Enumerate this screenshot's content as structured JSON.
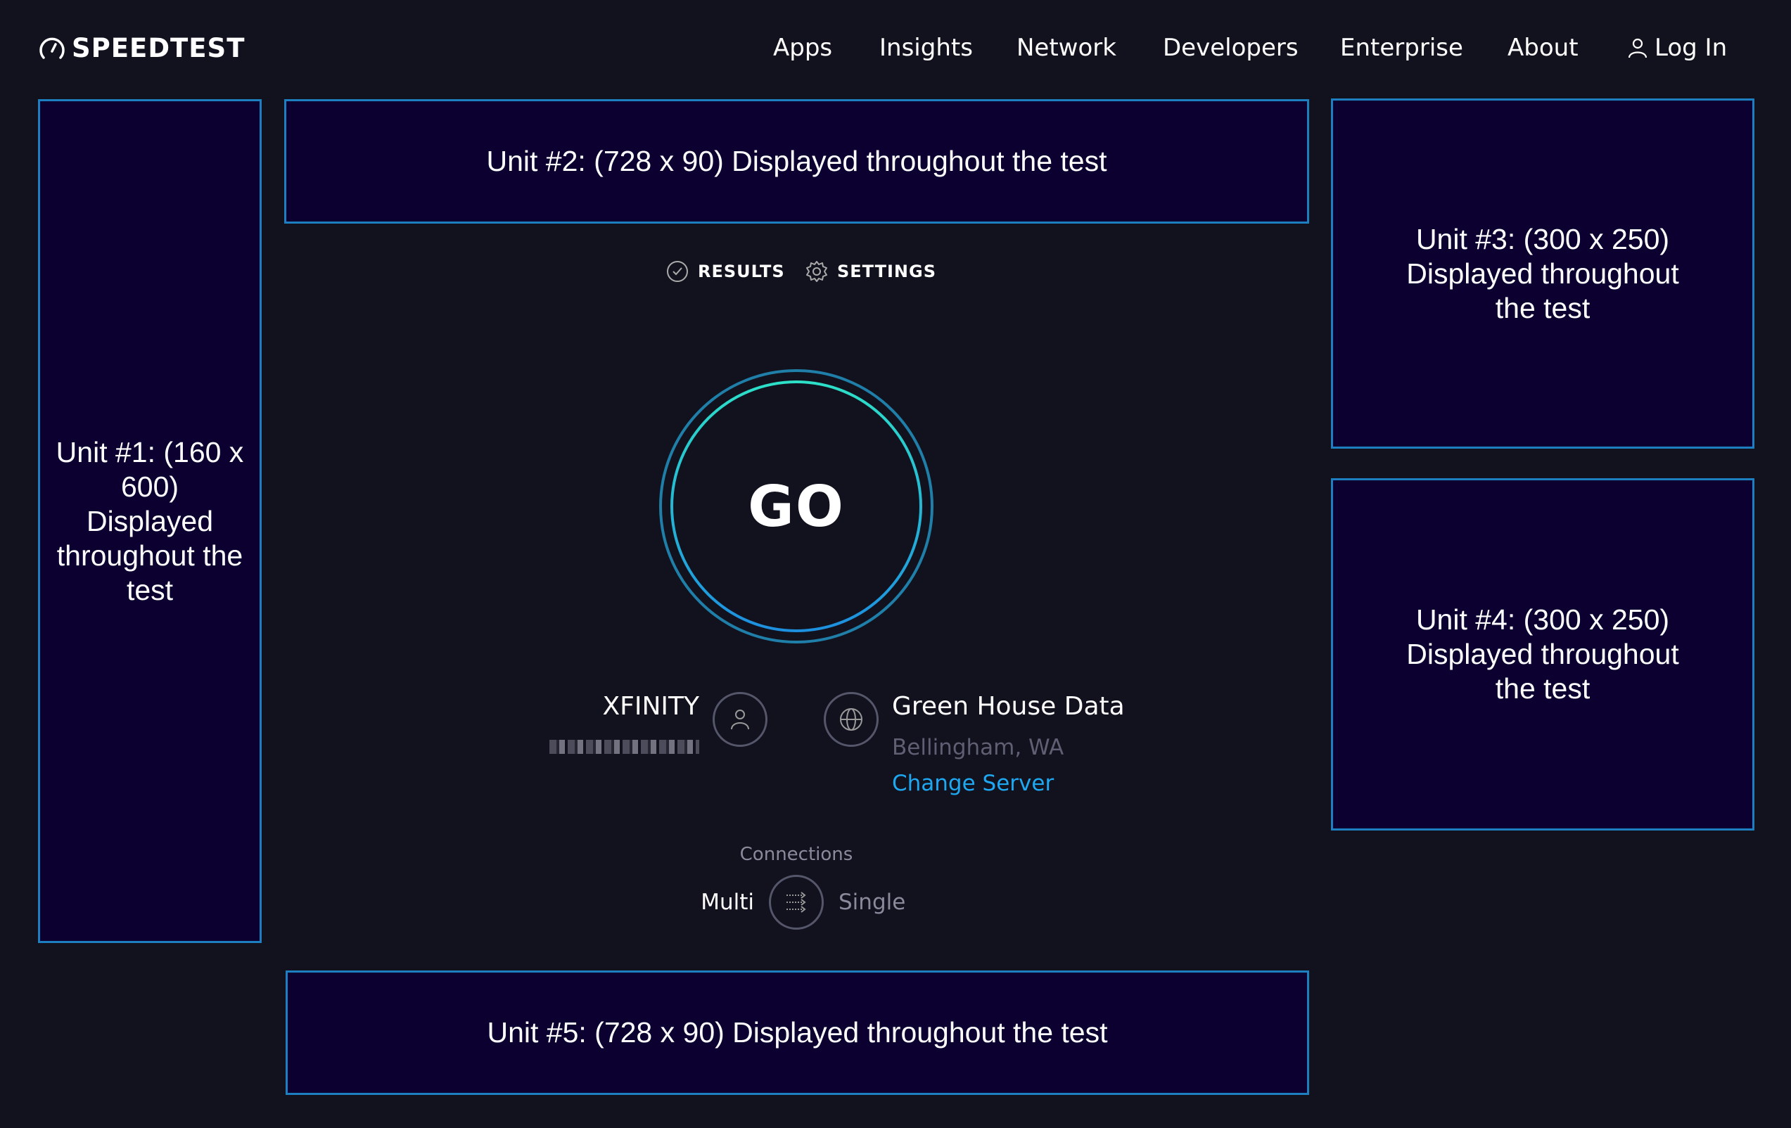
{
  "header": {
    "logo_text": "SPEEDTEST",
    "nav": [
      "Apps",
      "Insights",
      "Network",
      "Developers",
      "Enterprise",
      "About"
    ],
    "login_label": "Log In"
  },
  "ads": {
    "unit1": "Unit #1: (160 x 600) Displayed throughout the test",
    "unit2": "Unit #2: (728 x 90) Displayed throughout the test",
    "unit3": "Unit #3: (300 x 250) Displayed throughout the test",
    "unit4": "Unit #4: (300 x 250) Displayed throughout the test",
    "unit5": "Unit #5: (728 x 90) Displayed throughout the test"
  },
  "tabs": {
    "results": "RESULTS",
    "settings": "SETTINGS"
  },
  "go_label": "GO",
  "isp": {
    "name": "XFINITY"
  },
  "server": {
    "name": "Green House Data",
    "location": "Bellingham, WA",
    "change_label": "Change Server"
  },
  "connections": {
    "label": "Connections",
    "multi": "Multi",
    "single": "Single",
    "selected": "Multi"
  },
  "colors": {
    "background": "#11121e",
    "ad_background": "#0c0030",
    "ad_border": "#1d7fbf",
    "link": "#1fa8f2",
    "muted": "#5f5f73"
  }
}
